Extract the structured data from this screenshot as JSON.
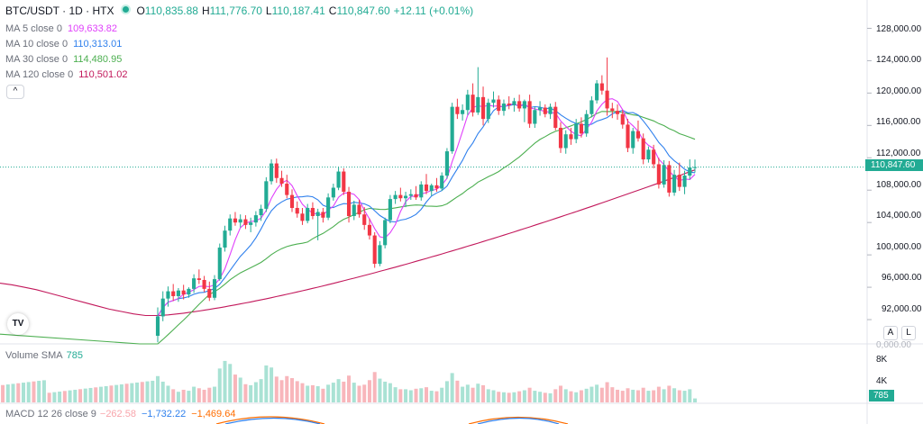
{
  "header": {
    "symbol": "BTC/USDT · 1D · HTX",
    "o_label": "O",
    "o_value": "110,835.88",
    "h_label": "H",
    "h_value": "111,776.70",
    "l_label": "L",
    "l_value": "110,187.41",
    "c_label": "C",
    "c_value": "110,847.60",
    "change": "+12.11 (+0.01%)"
  },
  "indicators": [
    {
      "label": "MA 5 close 0",
      "value": "109,633.82",
      "color": "#e040fb"
    },
    {
      "label": "MA 10 close 0",
      "value": "110,313.01",
      "color": "#2f80ed"
    },
    {
      "label": "MA 30 close 0",
      "value": "114,480.95",
      "color": "#4caf50"
    },
    {
      "label": "MA 120 close 0",
      "value": "110,501.02",
      "color": "#c2185b"
    }
  ],
  "controls": {
    "collapse": "^",
    "tv_logo": "TV",
    "auto": "A",
    "log": "L"
  },
  "volume_panel": {
    "label": "Volume SMA",
    "value": "785",
    "badge": "785"
  },
  "macd_panel": {
    "label": "MACD 12 26 close 9",
    "v1": "−262.58",
    "v2": "−1,732.22",
    "v3": "−1,469.64"
  },
  "price_axis": {
    "labels": [
      "128,000.00",
      "124,000.00",
      "120,000.00",
      "116,000.00",
      "112,000.00",
      "108,000.00",
      "104,000.00",
      "100,000.00",
      "96,000.00",
      "92,000.00"
    ],
    "current_price": "110,847.60"
  },
  "volume_axis": {
    "labels": [
      "8K",
      "4K"
    ],
    "partial_label": "0,000.00"
  },
  "colors": {
    "up": "#22ab94",
    "down": "#f23645",
    "up_light": "#a9e2d4",
    "down_light": "#f8b6bb"
  },
  "chart_data": {
    "type": "candlestick",
    "title": "BTC/USDT · 1D · HTX",
    "ylim": [
      89000,
      131500
    ],
    "volume_ylim": [
      0,
      10500
    ],
    "candles": [
      {
        "o": 90000,
        "h": 93500,
        "l": 89200,
        "c": 92400
      },
      {
        "o": 92400,
        "h": 95500,
        "l": 91800,
        "c": 94600
      },
      {
        "o": 94600,
        "h": 96100,
        "l": 93600,
        "c": 95500
      },
      {
        "o": 95500,
        "h": 96400,
        "l": 94300,
        "c": 94900
      },
      {
        "o": 94900,
        "h": 95900,
        "l": 94200,
        "c": 95600
      },
      {
        "o": 95600,
        "h": 96300,
        "l": 94500,
        "c": 95100
      },
      {
        "o": 95100,
        "h": 96000,
        "l": 94700,
        "c": 95800
      },
      {
        "o": 95800,
        "h": 97600,
        "l": 95300,
        "c": 97100
      },
      {
        "o": 97100,
        "h": 98200,
        "l": 96400,
        "c": 96900
      },
      {
        "o": 96900,
        "h": 97400,
        "l": 95400,
        "c": 95800
      },
      {
        "o": 95800,
        "h": 96700,
        "l": 94300,
        "c": 94700
      },
      {
        "o": 94700,
        "h": 97500,
        "l": 94400,
        "c": 97000
      },
      {
        "o": 97000,
        "h": 101400,
        "l": 96800,
        "c": 100900
      },
      {
        "o": 100900,
        "h": 103600,
        "l": 100400,
        "c": 103000
      },
      {
        "o": 103000,
        "h": 105000,
        "l": 102400,
        "c": 104500
      },
      {
        "o": 104500,
        "h": 105300,
        "l": 103600,
        "c": 104000
      },
      {
        "o": 104000,
        "h": 105000,
        "l": 103400,
        "c": 104400
      },
      {
        "o": 104400,
        "h": 104900,
        "l": 103200,
        "c": 103700
      },
      {
        "o": 103700,
        "h": 104600,
        "l": 102800,
        "c": 104000
      },
      {
        "o": 104000,
        "h": 105400,
        "l": 103500,
        "c": 104900
      },
      {
        "o": 104900,
        "h": 106200,
        "l": 104200,
        "c": 105700
      },
      {
        "o": 105700,
        "h": 109600,
        "l": 105300,
        "c": 109100
      },
      {
        "o": 109100,
        "h": 111800,
        "l": 108700,
        "c": 111300
      },
      {
        "o": 111300,
        "h": 111900,
        "l": 108900,
        "c": 109500
      },
      {
        "o": 109500,
        "h": 110400,
        "l": 108400,
        "c": 108800
      },
      {
        "o": 108800,
        "h": 109900,
        "l": 107000,
        "c": 107400
      },
      {
        "o": 107400,
        "h": 108100,
        "l": 105300,
        "c": 105800
      },
      {
        "o": 105800,
        "h": 106600,
        "l": 104600,
        "c": 105100
      },
      {
        "o": 105100,
        "h": 105800,
        "l": 103700,
        "c": 104200
      },
      {
        "o": 104200,
        "h": 106300,
        "l": 103900,
        "c": 105800
      },
      {
        "o": 105800,
        "h": 106500,
        "l": 104400,
        "c": 104800
      },
      {
        "o": 104800,
        "h": 105700,
        "l": 101800,
        "c": 105300
      },
      {
        "o": 105300,
        "h": 105800,
        "l": 104000,
        "c": 104600
      },
      {
        "o": 104600,
        "h": 107600,
        "l": 104300,
        "c": 107100
      },
      {
        "o": 107100,
        "h": 108800,
        "l": 106700,
        "c": 108300
      },
      {
        "o": 108300,
        "h": 110900,
        "l": 108000,
        "c": 110300
      },
      {
        "o": 110300,
        "h": 110700,
        "l": 107400,
        "c": 107800
      },
      {
        "o": 107800,
        "h": 108400,
        "l": 104000,
        "c": 104800
      },
      {
        "o": 104800,
        "h": 106700,
        "l": 104300,
        "c": 106200
      },
      {
        "o": 106200,
        "h": 106800,
        "l": 104600,
        "c": 105000
      },
      {
        "o": 105000,
        "h": 105900,
        "l": 103100,
        "c": 103700
      },
      {
        "o": 103700,
        "h": 104500,
        "l": 101900,
        "c": 102400
      },
      {
        "o": 102400,
        "h": 102800,
        "l": 98400,
        "c": 98900
      },
      {
        "o": 98900,
        "h": 101700,
        "l": 98600,
        "c": 101200
      },
      {
        "o": 101200,
        "h": 104600,
        "l": 100800,
        "c": 104300
      },
      {
        "o": 104300,
        "h": 107400,
        "l": 103900,
        "c": 106900
      },
      {
        "o": 106900,
        "h": 107900,
        "l": 106300,
        "c": 107400
      },
      {
        "o": 107400,
        "h": 108300,
        "l": 106600,
        "c": 107000
      },
      {
        "o": 107000,
        "h": 107800,
        "l": 105900,
        "c": 107300
      },
      {
        "o": 107300,
        "h": 108100,
        "l": 106800,
        "c": 107500
      },
      {
        "o": 107500,
        "h": 108500,
        "l": 106800,
        "c": 107100
      },
      {
        "o": 107100,
        "h": 109100,
        "l": 106700,
        "c": 108700
      },
      {
        "o": 108700,
        "h": 110000,
        "l": 107500,
        "c": 107900
      },
      {
        "o": 107900,
        "h": 108800,
        "l": 107300,
        "c": 108600
      },
      {
        "o": 108600,
        "h": 109500,
        "l": 107800,
        "c": 108200
      },
      {
        "o": 108200,
        "h": 110200,
        "l": 107900,
        "c": 109800
      },
      {
        "o": 109800,
        "h": 113200,
        "l": 109400,
        "c": 112800
      },
      {
        "o": 112800,
        "h": 118800,
        "l": 112500,
        "c": 118300
      },
      {
        "o": 118300,
        "h": 119300,
        "l": 116800,
        "c": 117400
      },
      {
        "o": 117400,
        "h": 118600,
        "l": 116600,
        "c": 117900
      },
      {
        "o": 117900,
        "h": 120400,
        "l": 117300,
        "c": 119800
      },
      {
        "o": 119800,
        "h": 121200,
        "l": 117100,
        "c": 117600
      },
      {
        "o": 117600,
        "h": 123200,
        "l": 117300,
        "c": 119500
      },
      {
        "o": 119500,
        "h": 120800,
        "l": 116000,
        "c": 116800
      },
      {
        "o": 116800,
        "h": 119300,
        "l": 116300,
        "c": 118800
      },
      {
        "o": 118800,
        "h": 120200,
        "l": 118200,
        "c": 119200
      },
      {
        "o": 119200,
        "h": 119700,
        "l": 117300,
        "c": 117800
      },
      {
        "o": 117800,
        "h": 119200,
        "l": 117200,
        "c": 118700
      },
      {
        "o": 118700,
        "h": 119600,
        "l": 118000,
        "c": 118500
      },
      {
        "o": 118500,
        "h": 119400,
        "l": 117700,
        "c": 119000
      },
      {
        "o": 119000,
        "h": 119800,
        "l": 117700,
        "c": 118100
      },
      {
        "o": 118100,
        "h": 119200,
        "l": 116400,
        "c": 119000
      },
      {
        "o": 119000,
        "h": 119800,
        "l": 115700,
        "c": 116200
      },
      {
        "o": 116200,
        "h": 118300,
        "l": 115700,
        "c": 117900
      },
      {
        "o": 117900,
        "h": 119000,
        "l": 117200,
        "c": 118200
      },
      {
        "o": 118200,
        "h": 118600,
        "l": 117000,
        "c": 117400
      },
      {
        "o": 117400,
        "h": 118700,
        "l": 116800,
        "c": 118300
      },
      {
        "o": 118300,
        "h": 118900,
        "l": 115400,
        "c": 115700
      },
      {
        "o": 115700,
        "h": 116400,
        "l": 112600,
        "c": 113200
      },
      {
        "o": 113200,
        "h": 115400,
        "l": 112500,
        "c": 114900
      },
      {
        "o": 114900,
        "h": 115700,
        "l": 113600,
        "c": 114300
      },
      {
        "o": 114300,
        "h": 116800,
        "l": 113800,
        "c": 116200
      },
      {
        "o": 116200,
        "h": 117000,
        "l": 114500,
        "c": 115000
      },
      {
        "o": 115000,
        "h": 117900,
        "l": 114600,
        "c": 117400
      },
      {
        "o": 117400,
        "h": 119600,
        "l": 117000,
        "c": 119100
      },
      {
        "o": 119100,
        "h": 121600,
        "l": 118700,
        "c": 121200
      },
      {
        "o": 121200,
        "h": 122200,
        "l": 119800,
        "c": 120300
      },
      {
        "o": 120300,
        "h": 124400,
        "l": 117200,
        "c": 118100
      },
      {
        "o": 118100,
        "h": 118800,
        "l": 116900,
        "c": 117800
      },
      {
        "o": 117800,
        "h": 118600,
        "l": 116700,
        "c": 117400
      },
      {
        "o": 117400,
        "h": 117900,
        "l": 115600,
        "c": 116100
      },
      {
        "o": 116100,
        "h": 116800,
        "l": 112700,
        "c": 113200
      },
      {
        "o": 113200,
        "h": 115700,
        "l": 112500,
        "c": 115300
      },
      {
        "o": 115300,
        "h": 116600,
        "l": 114000,
        "c": 114400
      },
      {
        "o": 114400,
        "h": 115000,
        "l": 111200,
        "c": 111800
      },
      {
        "o": 111800,
        "h": 113400,
        "l": 111400,
        "c": 113000
      },
      {
        "o": 113000,
        "h": 113600,
        "l": 110700,
        "c": 111200
      },
      {
        "o": 111200,
        "h": 112000,
        "l": 108200,
        "c": 108700
      },
      {
        "o": 108700,
        "h": 111700,
        "l": 108300,
        "c": 111100
      },
      {
        "o": 111100,
        "h": 111600,
        "l": 107200,
        "c": 107700
      },
      {
        "o": 107700,
        "h": 110500,
        "l": 107300,
        "c": 109900
      },
      {
        "o": 109900,
        "h": 111400,
        "l": 107900,
        "c": 108400
      },
      {
        "o": 108400,
        "h": 110400,
        "l": 107500,
        "c": 109800
      },
      {
        "o": 109800,
        "h": 111800,
        "l": 109300,
        "c": 110800
      },
      {
        "o": 110835.88,
        "h": 111776.7,
        "l": 110187.41,
        "c": 110847.6
      }
    ],
    "volume": [
      5200,
      4100,
      3300,
      2600,
      2100,
      2500,
      2300,
      3100,
      2800,
      2500,
      2900,
      3100,
      6700,
      8200,
      7600,
      5500,
      4900,
      3600,
      3400,
      4000,
      4600,
      7300,
      6900,
      5100,
      4400,
      5200,
      4800,
      4200,
      3800,
      3300,
      3400,
      3200,
      2700,
      3500,
      3900,
      4600,
      4100,
      5300,
      3900,
      3300,
      3500,
      4400,
      6000,
      4700,
      4100,
      3800,
      3000,
      2600,
      2600,
      2400,
      2700,
      2800,
      3000,
      2300,
      2200,
      2900,
      4200,
      5800,
      4300,
      3100,
      3500,
      2900,
      3700,
      3400,
      2600,
      2400,
      2100,
      2000,
      1900,
      2000,
      2200,
      2400,
      2900,
      2300,
      2100,
      1900,
      1800,
      2600,
      3300,
      2600,
      2200,
      2000,
      2400,
      2700,
      3100,
      3500,
      2900,
      4000,
      3000,
      2500,
      2300,
      2800,
      2500,
      2400,
      2900,
      2300,
      2400,
      3100,
      2600,
      3300,
      2800,
      2400,
      2300,
      2600,
      785
    ],
    "ma5_last": 109633.82,
    "ma10_last": 110313.01,
    "ma30_last": 114480.95,
    "ma120_last": 110501.02,
    "ma120_history_start": [
      96500,
      96300,
      96000,
      95700,
      95300,
      94900,
      94500,
      94100,
      93700,
      93300,
      93000,
      92700,
      92500
    ],
    "volume_sma_label": "Volume SMA"
  }
}
